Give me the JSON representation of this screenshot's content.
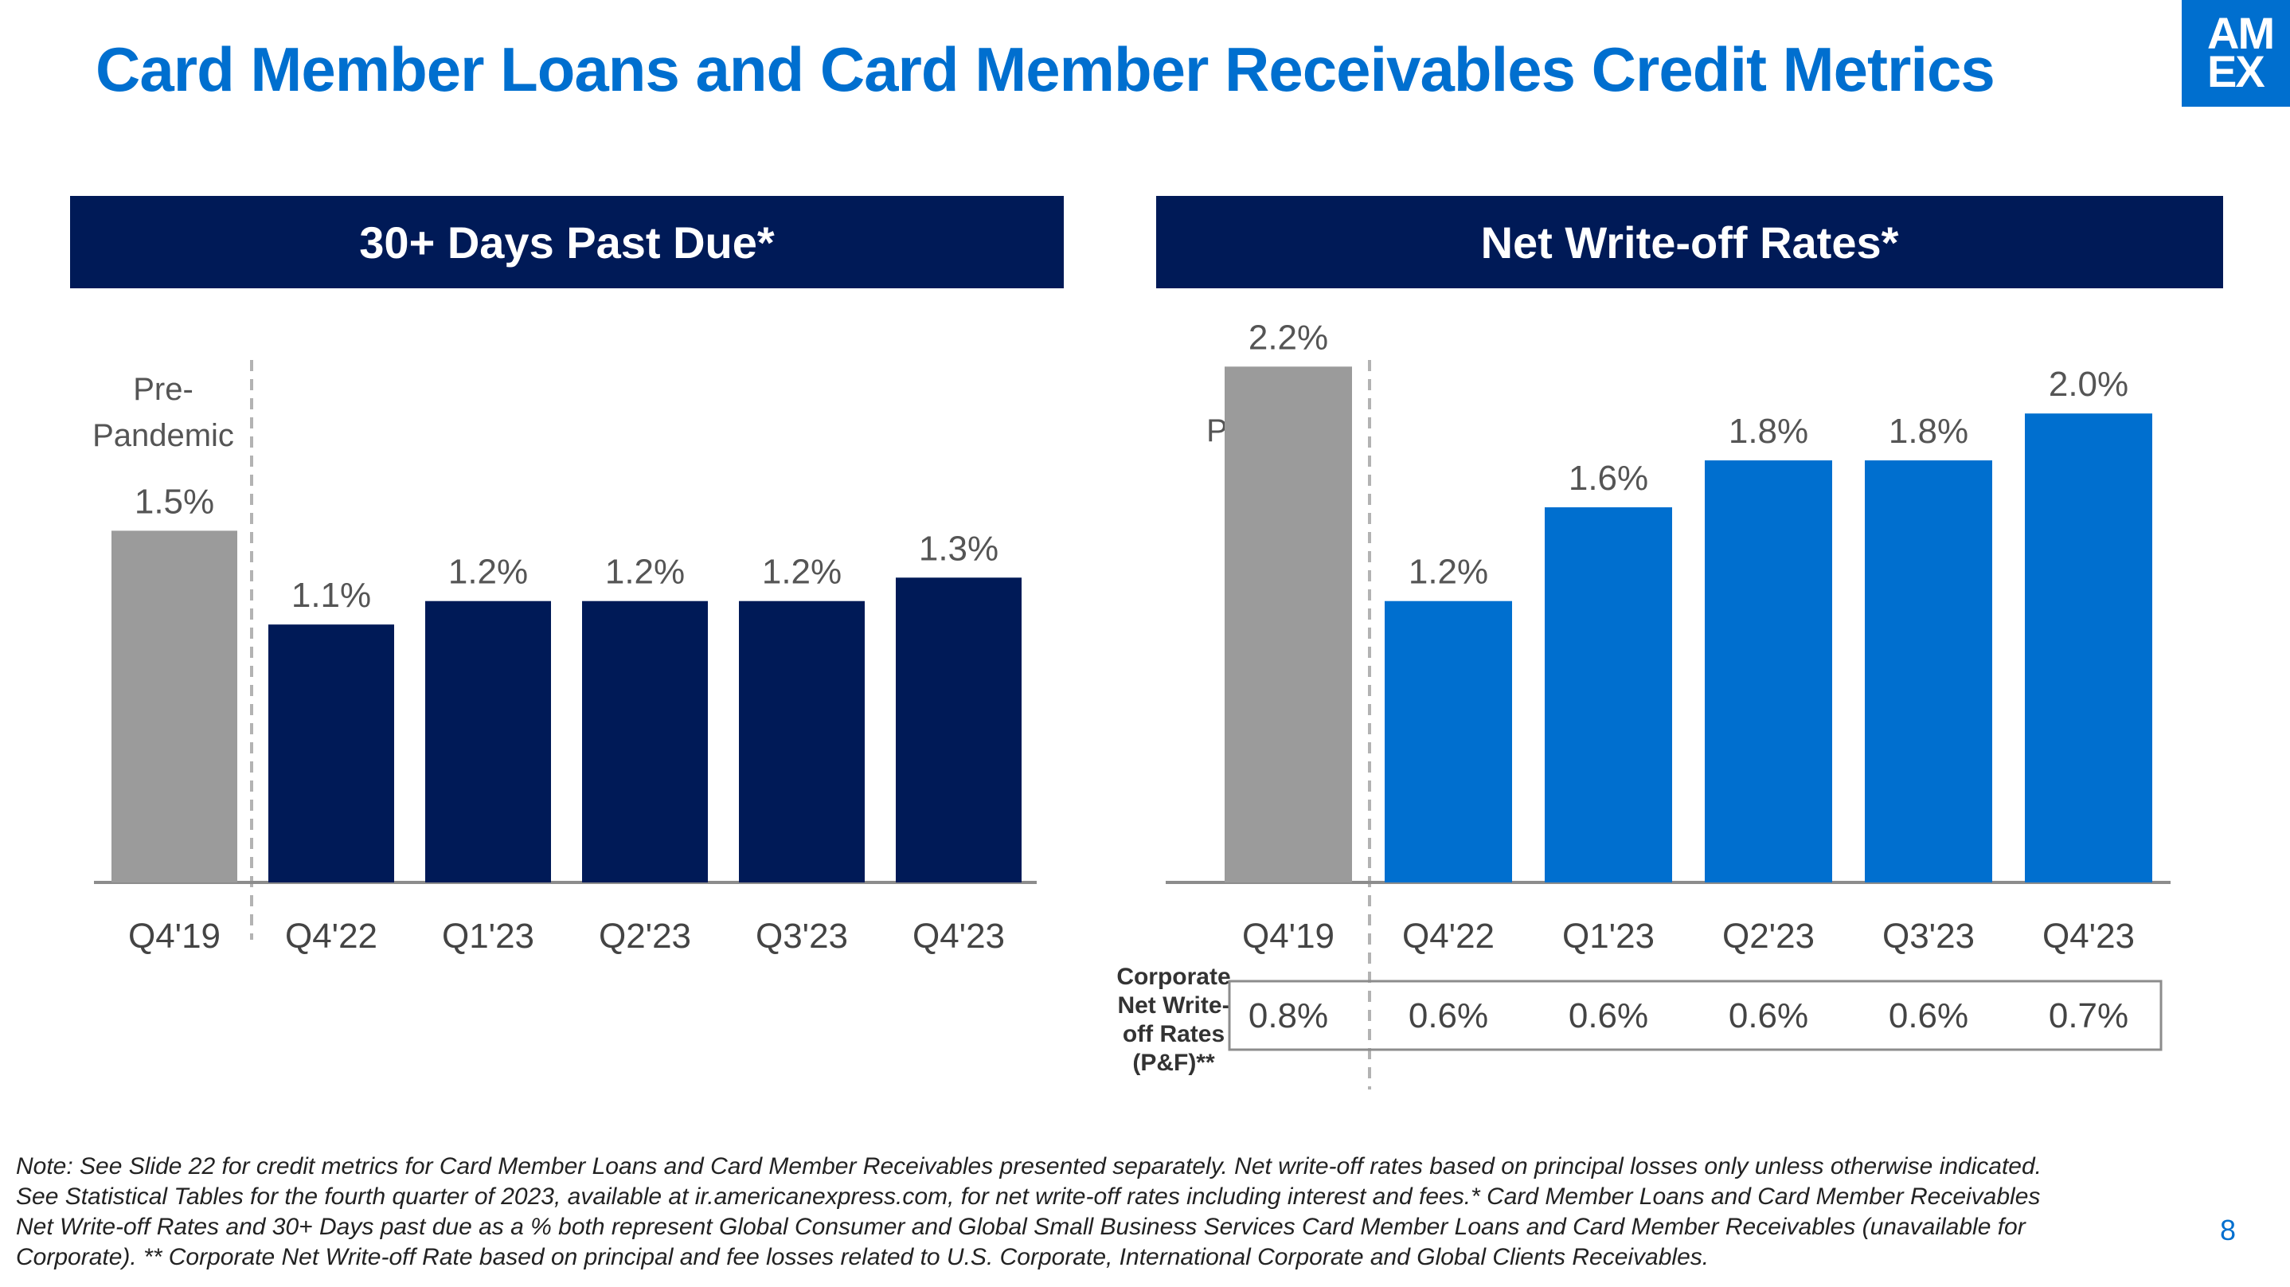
{
  "title": "Card Member Loans and Card Member Receivables Credit Metrics",
  "logo_text": [
    "AM",
    "EX"
  ],
  "page_number": "8",
  "pre_pandemic_label": [
    "Pre-",
    "Pandemic"
  ],
  "colors": {
    "brand_blue": "#006fcf",
    "navy": "#001a57",
    "gray_bar": "#9b9b9b"
  },
  "chart_data": [
    {
      "type": "bar",
      "title": "30+ Days Past Due*",
      "categories": [
        "Q4'19",
        "Q4'22",
        "Q1'23",
        "Q2'23",
        "Q3'23",
        "Q4'23"
      ],
      "values": [
        1.5,
        1.1,
        1.2,
        1.2,
        1.2,
        1.3
      ],
      "value_labels": [
        "1.5%",
        "1.1%",
        "1.2%",
        "1.2%",
        "1.2%",
        "1.3%"
      ],
      "bar_colors": [
        "#9b9b9b",
        "#001a57",
        "#001a57",
        "#001a57",
        "#001a57",
        "#001a57"
      ],
      "ylim": [
        0,
        2.5
      ]
    },
    {
      "type": "bar",
      "title": "Net Write-off Rates*",
      "categories": [
        "Q4'19",
        "Q4'22",
        "Q1'23",
        "Q2'23",
        "Q3'23",
        "Q4'23"
      ],
      "values": [
        2.2,
        1.2,
        1.6,
        1.8,
        1.8,
        2.0
      ],
      "value_labels": [
        "2.2%",
        "1.2%",
        "1.6%",
        "1.8%",
        "1.8%",
        "2.0%"
      ],
      "bar_colors": [
        "#9b9b9b",
        "#006fcf",
        "#006fcf",
        "#006fcf",
        "#006fcf",
        "#006fcf"
      ],
      "ylim": [
        0,
        2.5
      ]
    }
  ],
  "corporate_table": {
    "label_lines": [
      "Corporate",
      "Net Write-",
      "off Rates",
      "(P&F)**"
    ],
    "values": [
      "0.8%",
      "0.6%",
      "0.6%",
      "0.6%",
      "0.6%",
      "0.7%"
    ]
  },
  "note_lines": [
    "Note: See Slide 22 for credit metrics for Card Member Loans and Card Member Receivables presented separately. Net write-off rates based on principal losses only unless otherwise indicated.",
    "See Statistical Tables for the fourth quarter of 2023, available at ir.americanexpress.com, for net write-off rates including interest and fees.* Card Member Loans and Card Member Receivables",
    "Net Write-off Rates and 30+ Days past due as a % both represent Global Consumer and Global Small Business Services Card Member Loans and Card Member Receivables (unavailable for",
    "Corporate). **  Corporate Net Write-off Rate based on principal and fee losses related to U.S. Corporate, International Corporate and Global Clients Receivables."
  ]
}
